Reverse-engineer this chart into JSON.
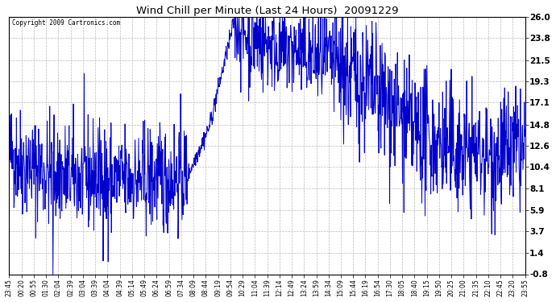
{
  "title": "Wind Chill per Minute (Last 24 Hours)  20091229",
  "copyright": "Copyright 2009 Cartronics.com",
  "line_color": "#0000cc",
  "bg_color": "#ffffff",
  "grid_color": "#aaaaaa",
  "yticks": [
    -0.8,
    1.4,
    3.7,
    5.9,
    8.1,
    10.4,
    12.6,
    14.8,
    17.1,
    19.3,
    21.5,
    23.8,
    26.0
  ],
  "ylim": [
    -0.8,
    26.0
  ],
  "xlabels": [
    "23:45",
    "00:20",
    "00:55",
    "01:30",
    "02:04",
    "02:39",
    "03:04",
    "03:39",
    "04:04",
    "04:39",
    "05:14",
    "05:49",
    "06:24",
    "06:59",
    "07:34",
    "08:09",
    "08:44",
    "09:19",
    "09:54",
    "10:29",
    "11:04",
    "11:39",
    "12:14",
    "12:49",
    "13:24",
    "13:59",
    "14:34",
    "15:09",
    "15:44",
    "16:19",
    "16:54",
    "17:30",
    "18:05",
    "18:40",
    "19:15",
    "19:50",
    "20:25",
    "21:00",
    "21:35",
    "22:10",
    "22:45",
    "23:20",
    "23:55"
  ],
  "n_points": 1440,
  "seed": 42
}
